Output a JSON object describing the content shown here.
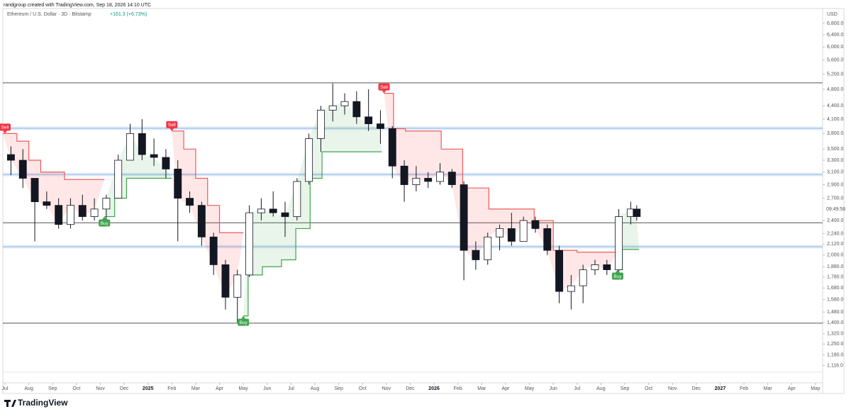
{
  "header": "randgroup created with TradingView.com, Sep 18, 2026 14:10 UTC",
  "footer": "TradingView",
  "chart_data": {
    "type": "candlestick",
    "title": "Ethereum / U.S. Dollar · 3D · Bitstamp",
    "change": "+161.3 (+6.73%)",
    "y_axis_label": "USD",
    "countdown": "09:49:56",
    "log_scale": true,
    "up_color": "#ffffff",
    "down_color": "#131722",
    "x": [
      0.25,
      0.75,
      1.25,
      1.75,
      2.25,
      2.75,
      3.25,
      3.75,
      4.25,
      4.75,
      5.25,
      5.75,
      6.25,
      6.75,
      7.25,
      7.75,
      8.25,
      8.75,
      9.25,
      9.75,
      10.25,
      10.75,
      11.25,
      11.75,
      12.25,
      12.75,
      13.25,
      13.75,
      14.25,
      14.75,
      15.25,
      15.75,
      16.25,
      16.75,
      17.25,
      17.75,
      18.25,
      18.75,
      19.25,
      19.75,
      20.25,
      20.75,
      21.25,
      21.75,
      22.25,
      22.75,
      23.25,
      23.75,
      24.25,
      24.75,
      25.25,
      25.75,
      26.25,
      26.5
    ],
    "open": [
      3400,
      3300,
      3000,
      2650,
      2600,
      2350,
      2600,
      2450,
      2550,
      2700,
      3300,
      3800,
      3400,
      3350,
      3150,
      2700,
      2600,
      2200,
      1900,
      1600,
      1800,
      2500,
      2550,
      2500,
      2450,
      2950,
      3700,
      4300,
      4400,
      4500,
      4150,
      4000,
      3900,
      3200,
      2900,
      3000,
      2950,
      3100,
      2900,
      2050,
      1950,
      2200,
      2300,
      2150,
      2400,
      2300,
      2050,
      1650,
      1700,
      1850,
      1900,
      1850,
      2450,
      2550
    ],
    "high": [
      3550,
      3500,
      3000,
      2800,
      2700,
      2700,
      2750,
      2700,
      2750,
      3400,
      4000,
      4100,
      3700,
      3500,
      3300,
      2800,
      2650,
      2250,
      1950,
      1850,
      2600,
      2700,
      2800,
      2650,
      3000,
      3800,
      4400,
      4950,
      4700,
      4750,
      4800,
      4300,
      3950,
      3300,
      3200,
      3100,
      3250,
      3150,
      2950,
      2150,
      2250,
      2350,
      2500,
      2450,
      2450,
      2350,
      2100,
      1800,
      1900,
      1950,
      1950,
      2550,
      2650,
      2600
    ],
    "low": [
      3050,
      2850,
      2150,
      2550,
      2300,
      2300,
      2400,
      2400,
      2350,
      2700,
      3300,
      3300,
      3200,
      3000,
      2150,
      2500,
      2100,
      1800,
      1500,
      1400,
      1780,
      2400,
      2450,
      2200,
      2400,
      2900,
      3450,
      4050,
      4200,
      4000,
      3850,
      3600,
      3000,
      2650,
      2800,
      2850,
      2900,
      2850,
      1750,
      1850,
      1900,
      2050,
      2100,
      2150,
      2250,
      2000,
      1550,
      1500,
      1550,
      1800,
      1800,
      1800,
      2350,
      2400
    ],
    "close": [
      3300,
      3000,
      2650,
      2600,
      2350,
      2600,
      2450,
      2550,
      2700,
      3300,
      3800,
      3400,
      3350,
      3150,
      2700,
      2600,
      2200,
      1900,
      1600,
      1800,
      2500,
      2550,
      2500,
      2450,
      2950,
      3700,
      4300,
      4400,
      4500,
      4150,
      4000,
      3900,
      3200,
      2900,
      3000,
      2950,
      3100,
      2900,
      2050,
      1950,
      2200,
      2300,
      2150,
      2400,
      2300,
      2050,
      1650,
      1700,
      1850,
      1900,
      1850,
      2450,
      2550,
      2450
    ],
    "xlim": [
      -0.09,
      34.3
    ],
    "ylim": [
      1077,
      7356
    ],
    "xticks": [
      {
        "value": 0,
        "label": "Jul"
      },
      {
        "value": 1,
        "label": "Aug"
      },
      {
        "value": 2,
        "label": "Sep"
      },
      {
        "value": 3,
        "label": "Oct"
      },
      {
        "value": 4,
        "label": "Nov"
      },
      {
        "value": 5,
        "label": "Dec"
      },
      {
        "value": 6,
        "label": "2025"
      },
      {
        "value": 7,
        "label": "Feb"
      },
      {
        "value": 8,
        "label": "Mar"
      },
      {
        "value": 9,
        "label": "Apr"
      },
      {
        "value": 10,
        "label": "May"
      },
      {
        "value": 11,
        "label": "Jun"
      },
      {
        "value": 12,
        "label": "Jul"
      },
      {
        "value": 13,
        "label": "Aug"
      },
      {
        "value": 14,
        "label": "Sep"
      },
      {
        "value": 15,
        "label": "Oct"
      },
      {
        "value": 16,
        "label": "Nov"
      },
      {
        "value": 17,
        "label": "Dec"
      },
      {
        "value": 18,
        "label": "2026"
      },
      {
        "value": 19,
        "label": "Feb"
      },
      {
        "value": 20,
        "label": "Mar"
      },
      {
        "value": 21,
        "label": "Apr"
      },
      {
        "value": 22,
        "label": "May"
      },
      {
        "value": 23,
        "label": "Jun"
      },
      {
        "value": 24,
        "label": "Jul"
      },
      {
        "value": 25,
        "label": "Aug"
      },
      {
        "value": 26,
        "label": "Sep"
      },
      {
        "value": 27,
        "label": "Oct"
      },
      {
        "value": 28,
        "label": "Nov"
      },
      {
        "value": 29,
        "label": "Dec"
      },
      {
        "value": 30,
        "label": "2027"
      },
      {
        "value": 31,
        "label": "Feb"
      },
      {
        "value": 32,
        "label": "Mar"
      },
      {
        "value": 33,
        "label": "Apr"
      },
      {
        "value": 34,
        "label": "May"
      }
    ],
    "yticks": [
      {
        "value": 6800,
        "label": "6,800.0"
      },
      {
        "value": 6400,
        "label": "6,400.0"
      },
      {
        "value": 6000,
        "label": "6,000.0"
      },
      {
        "value": 5600,
        "label": "5,600.0"
      },
      {
        "value": 5200,
        "label": "5,200.0"
      },
      {
        "value": 4800,
        "label": "4,800.0"
      },
      {
        "value": 4400,
        "label": "4,400.0"
      },
      {
        "value": 4100,
        "label": "4,100.0"
      },
      {
        "value": 3800,
        "label": "3,800.0"
      },
      {
        "value": 3500,
        "label": "3,500.0"
      },
      {
        "value": 3300,
        "label": "3,300.0"
      },
      {
        "value": 3100,
        "label": "3,100.0"
      },
      {
        "value": 2900,
        "label": "2,900.0"
      },
      {
        "value": 2700,
        "label": "2,700.0"
      },
      {
        "value": 2400,
        "label": "2,400.0"
      },
      {
        "value": 2240,
        "label": "2,240.0"
      },
      {
        "value": 2120,
        "label": "2,120.0"
      },
      {
        "value": 2000,
        "label": "2,000.0"
      },
      {
        "value": 1880,
        "label": "1,880.0"
      },
      {
        "value": 1780,
        "label": "1,780.0"
      },
      {
        "value": 1680,
        "label": "1,680.0"
      },
      {
        "value": 1580,
        "label": "1,580.0"
      },
      {
        "value": 1480,
        "label": "1,480.0"
      },
      {
        "value": 1400,
        "label": "1,400.0"
      },
      {
        "value": 1320,
        "label": "1,320.0"
      },
      {
        "value": 1250,
        "label": "1,250.0"
      },
      {
        "value": 1180,
        "label": "1,180.0"
      },
      {
        "value": 1116,
        "label": "1,116.0"
      }
    ],
    "levels": [
      {
        "value": 4966,
        "color": "#555555"
      },
      {
        "value": 3906,
        "color": "#90b8e8"
      },
      {
        "value": 3061,
        "color": "#90b8e8"
      },
      {
        "value": 2372,
        "color": "#555555"
      },
      {
        "value": 2090,
        "color": "#90b8e8"
      },
      {
        "value": 1395,
        "color": "#555555"
      }
    ],
    "trend": [
      {
        "color": "#f05a5a",
        "fill": "rgba(255,82,82,0.14)",
        "x": [
          -0.09,
          0.5,
          0.5,
          1.0,
          1.0,
          1.5,
          1.5,
          2.5,
          2.5,
          4.17
        ],
        "values": [
          3800,
          3800,
          3650,
          3650,
          3300,
          3300,
          3100,
          3100,
          2980,
          2980
        ]
      },
      {
        "color": "#3fa34d",
        "fill": "rgba(76,175,80,0.12)",
        "x": [
          4.17,
          4.6,
          4.6,
          5.1,
          5.1,
          7.0
        ],
        "values": [
          2450,
          2450,
          2700,
          2700,
          3000,
          3000
        ]
      },
      {
        "color": "#f05a5a",
        "fill": "rgba(255,82,82,0.14)",
        "x": [
          7.0,
          7.5,
          7.5,
          8.0,
          8.0,
          8.5,
          8.5,
          9.0,
          9.0,
          10.0
        ],
        "values": [
          3850,
          3850,
          3500,
          3500,
          3000,
          3000,
          2600,
          2600,
          2250,
          2250
        ]
      },
      {
        "color": "#3fa34d",
        "fill": "rgba(76,175,80,0.12)",
        "x": [
          10.0,
          10.2,
          10.2,
          10.8,
          10.8,
          11.6,
          11.6,
          12.2,
          12.2,
          12.8,
          12.8,
          13.3,
          13.3,
          15.8
        ],
        "values": [
          1450,
          1450,
          1800,
          1800,
          1880,
          1880,
          1950,
          1950,
          2300,
          2300,
          3000,
          3000,
          3450,
          3450
        ]
      },
      {
        "color": "#f05a5a",
        "fill": "rgba(255,82,82,0.14)",
        "x": [
          15.9,
          16.3,
          16.3,
          16.8,
          16.8,
          18.3,
          18.3,
          19.2,
          19.2,
          20.3,
          20.3,
          22.2,
          22.2,
          23.0,
          23.0,
          24.0,
          24.0,
          25.7
        ],
        "values": [
          4700,
          4700,
          3900,
          3900,
          3850,
          3850,
          3500,
          3500,
          2850,
          2850,
          2550,
          2550,
          2400,
          2400,
          2050,
          2050,
          2030,
          2030
        ]
      },
      {
        "color": "#3fa34d",
        "fill": "rgba(76,175,80,0.12)",
        "x": [
          25.7,
          25.9,
          25.9,
          26.6
        ],
        "values": [
          1850,
          1850,
          2060,
          2060
        ]
      }
    ],
    "signals": [
      {
        "label": "Sell",
        "x": 0.0,
        "value": 3800,
        "color": "#f23645"
      },
      {
        "label": "Buy",
        "x": 4.17,
        "value": 2450,
        "color": "#3fa34d"
      },
      {
        "label": "Sell",
        "x": 7.0,
        "value": 3850,
        "color": "#f23645"
      },
      {
        "label": "Buy",
        "x": 10.0,
        "value": 1450,
        "color": "#3fa34d"
      },
      {
        "label": "Sell",
        "x": 15.9,
        "value": 4700,
        "color": "#f23645"
      },
      {
        "label": "Buy",
        "x": 25.7,
        "value": 1850,
        "color": "#3fa34d"
      }
    ]
  }
}
